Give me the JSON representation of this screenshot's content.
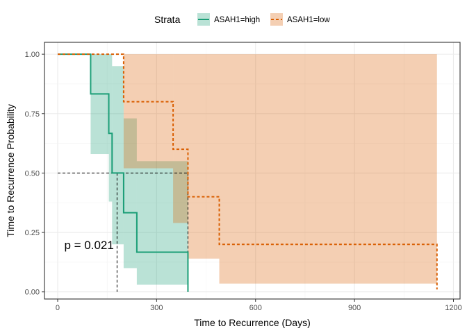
{
  "chart_data": {
    "type": "line",
    "subtype": "kaplan-meier",
    "xlabel": "Time to Recurrence (Days)",
    "ylabel": "Time to Recurrence Probability",
    "xlim": [
      -40,
      1220
    ],
    "ylim": [
      -0.03,
      1.05
    ],
    "xticks": [
      0,
      300,
      600,
      900,
      1200
    ],
    "yticks": [
      0,
      0.25,
      0.5,
      0.75,
      1
    ],
    "xtick_labels": [
      "0",
      "300",
      "600",
      "900",
      "1200"
    ],
    "ytick_labels": [
      "0.00",
      "0.25",
      "0.50",
      "0.75",
      "1.00"
    ],
    "grid": true,
    "legend": {
      "title": "Strata",
      "position": "top",
      "entries": [
        "ASAH1=high",
        "ASAH1=low"
      ]
    },
    "annotation": "p = 0.021",
    "annotation_position": {
      "x": 20,
      "y": 0.18
    },
    "median_line": {
      "y": 0.5,
      "x_values": [
        180,
        395
      ]
    },
    "series": [
      {
        "name": "ASAH1=high",
        "color": "#1b9e77",
        "linestyle": "solid",
        "x": [
          0,
          100,
          100,
          155,
          155,
          165,
          165,
          200,
          200,
          240,
          240,
          395,
          395
        ],
        "y": [
          1,
          1,
          0.833,
          0.833,
          0.667,
          0.667,
          0.5,
          0.5,
          0.333,
          0.333,
          0.167,
          0.167,
          0
        ],
        "ci_lower": [
          1,
          1,
          0.58,
          0.58,
          0.38,
          0.38,
          0.2,
          0.2,
          0.1,
          0.1,
          0.03,
          0.03,
          0.03
        ],
        "ci_upper": [
          1,
          1,
          1,
          1,
          1,
          1,
          0.95,
          0.95,
          0.73,
          0.73,
          0.55,
          0.55,
          0.55
        ]
      },
      {
        "name": "ASAH1=low",
        "color": "#d95f02",
        "linestyle": "dashed",
        "x": [
          0,
          200,
          200,
          350,
          350,
          395,
          395,
          490,
          490,
          1150,
          1150
        ],
        "y": [
          1,
          1,
          0.8,
          0.8,
          0.6,
          0.6,
          0.4,
          0.4,
          0.2,
          0.2,
          0.01
        ],
        "ci_lower": [
          1,
          1,
          0.52,
          0.52,
          0.29,
          0.29,
          0.14,
          0.14,
          0.035,
          0.035,
          0.035
        ],
        "ci_upper": [
          1,
          1,
          1,
          1,
          1,
          1,
          1,
          1,
          1,
          1,
          1
        ]
      }
    ]
  }
}
